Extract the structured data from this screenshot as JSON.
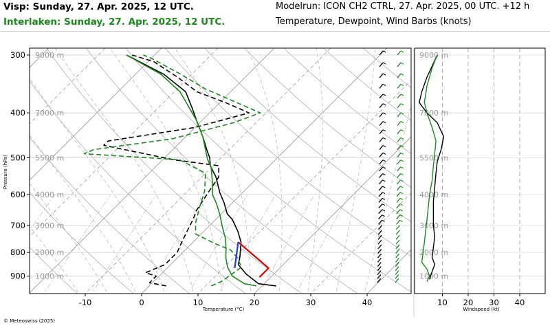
{
  "header": {
    "left_line1": "Visp: Sunday, 27. Apr. 2025, 12 UTC.",
    "left_line2": "Interlaken: Sunday, 27. Apr. 2025, 12 UTC.",
    "right_line1": "Modelrun: ICON CH2 CTRL, 27. Apr. 2025, 00 UTC. +12 h",
    "right_line2": "Temperature, Dewpoint, Wind Barbs (knots)"
  },
  "footer": {
    "copyright": "© Meteoswiss (2025)"
  },
  "colors": {
    "visp": "#000000",
    "interlaken": "#1a8a1a",
    "parcel_dry": "#e00000",
    "parcel_moist": "#1f3fe0",
    "grid": "#9a9a9a"
  },
  "chart_data": [
    {
      "type": "line",
      "subtype": "skew-t",
      "xlabel": "Temperature (°C)",
      "ylabel": "Pressure (hPa)",
      "xlim": [
        -25,
        47
      ],
      "ylim": [
        975,
        300
      ],
      "y_scale": "log",
      "x_ticks": [
        -10,
        0,
        10,
        20,
        30,
        40
      ],
      "y_ticks": [
        300,
        400,
        500,
        600,
        700,
        800,
        900
      ],
      "height_labels": [
        {
          "p": 300,
          "label": "9000 m"
        },
        {
          "p": 400,
          "label": "7000 m"
        },
        {
          "p": 500,
          "label": "5500 m"
        },
        {
          "p": 600,
          "label": "4000 m"
        },
        {
          "p": 700,
          "label": "3000 m"
        },
        {
          "p": 800,
          "label": "2000 m"
        },
        {
          "p": 900,
          "label": "1000 m"
        }
      ],
      "grid": true,
      "series": [
        {
          "name": "Visp",
          "quantity": "temperature",
          "color": "#000000",
          "style": "solid",
          "points": [
            [
              22.5,
              945
            ],
            [
              19,
              935
            ],
            [
              15,
              890
            ],
            [
              12,
              850
            ],
            [
              11,
              820
            ],
            [
              8.5,
              760
            ],
            [
              6,
              720
            ],
            [
              3,
              680
            ],
            [
              1,
              660
            ],
            [
              -1.5,
              625
            ],
            [
              -4,
              595
            ],
            [
              -7.5,
              550
            ],
            [
              -10.5,
              520
            ],
            [
              -12,
              500
            ],
            [
              -13.5,
              485
            ],
            [
              -17,
              450
            ],
            [
              -21,
              415
            ],
            [
              -24,
              390
            ],
            [
              -28,
              360
            ],
            [
              -35,
              330
            ],
            [
              -45,
              300
            ]
          ]
        },
        {
          "name": "Visp",
          "quantity": "dewpoint",
          "color": "#000000",
          "style": "dashed",
          "points": [
            [
              3,
              945
            ],
            [
              -0.5,
              930
            ],
            [
              -0.5,
              900
            ],
            [
              -3,
              885
            ],
            [
              -1,
              850
            ],
            [
              -1,
              800
            ],
            [
              -2,
              760
            ],
            [
              -3,
              720
            ],
            [
              -4,
              680
            ],
            [
              -5,
              650
            ],
            [
              -6,
              600
            ],
            [
              -7,
              550
            ],
            [
              -9,
              520
            ],
            [
              -18,
              505
            ],
            [
              -33,
              470
            ],
            [
              -33,
              460
            ],
            [
              -20,
              430
            ],
            [
              -13,
              400
            ],
            [
              -19,
              380
            ],
            [
              -26,
              360
            ],
            [
              -32,
              335
            ],
            [
              -39,
              310
            ],
            [
              -44,
              300
            ]
          ]
        },
        {
          "name": "Interlaken",
          "quantity": "temperature",
          "color": "#1a8a1a",
          "style": "solid",
          "points": [
            [
              19,
              945
            ],
            [
              16.5,
              935
            ],
            [
              13,
              900
            ],
            [
              10.5,
              860
            ],
            [
              8.5,
              820
            ],
            [
              7,
              785
            ],
            [
              5,
              745
            ],
            [
              2.5,
              705
            ],
            [
              0,
              665
            ],
            [
              -2.5,
              630
            ],
            [
              -5,
              600
            ],
            [
              -7.5,
              560
            ],
            [
              -10,
              525
            ],
            [
              -12,
              505
            ],
            [
              -13.5,
              488
            ],
            [
              -17,
              450
            ],
            [
              -21,
              415
            ],
            [
              -24.5,
              390
            ],
            [
              -29,
              360
            ],
            [
              -35.5,
              330
            ],
            [
              -45,
              300
            ]
          ]
        },
        {
          "name": "Interlaken",
          "quantity": "dewpoint",
          "color": "#1a8a1a",
          "style": "dashed",
          "points": [
            [
              11,
              945
            ],
            [
              12,
              925
            ],
            [
              12.5,
              895
            ],
            [
              13,
              860
            ],
            [
              10.5,
              820
            ],
            [
              8,
              790
            ],
            [
              4,
              765
            ],
            [
              -1,
              730
            ],
            [
              -3,
              690
            ],
            [
              -5,
              640
            ],
            [
              -7,
              590
            ],
            [
              -10,
              540
            ],
            [
              -17,
              505
            ],
            [
              -35,
              490
            ],
            [
              -34,
              480
            ],
            [
              -22,
              455
            ],
            [
              -14,
              420
            ],
            [
              -11,
              400
            ],
            [
              -17,
              380
            ],
            [
              -25,
              355
            ],
            [
              -32,
              330
            ],
            [
              -40,
              305
            ],
            [
              -42,
              300
            ]
          ]
        },
        {
          "name": "",
          "quantity": "parcel dry adiabat",
          "color": "#e00000",
          "style": "solid",
          "points": [
            [
              18,
              905
            ],
            [
              18,
              865
            ],
            [
              8,
              760
            ]
          ]
        },
        {
          "name": "",
          "quantity": "parcel moist adiabat",
          "color": "#1f3fe0",
          "style": "solid",
          "points": [
            [
              12,
              865
            ],
            [
              8,
              760
            ]
          ]
        }
      ]
    },
    {
      "type": "line",
      "subtype": "wind-speed-profile",
      "xlabel": "Windspeed (kt)",
      "xlim": [
        0,
        46
      ],
      "ylim": [
        975,
        300
      ],
      "y_scale": "log",
      "x_ticks": [
        10,
        20,
        30,
        40
      ],
      "height_labels": [
        "9000 m",
        "7000 m",
        "5500 m",
        "4000 m",
        "3000 m",
        "2000 m",
        "1000 m"
      ],
      "grid": true,
      "series": [
        {
          "name": "Visp",
          "color": "#000000",
          "points": [
            [
              5,
              915
            ],
            [
              6,
              880
            ],
            [
              7,
              850
            ],
            [
              6,
              820
            ],
            [
              6.5,
              780
            ],
            [
              7,
              740
            ],
            [
              6.5,
              700
            ],
            [
              6.5,
              660
            ],
            [
              6.5,
              620
            ],
            [
              7,
              580
            ],
            [
              7.5,
              540
            ],
            [
              8,
              510
            ],
            [
              9.5,
              480
            ],
            [
              10.5,
              450
            ],
            [
              8,
              420
            ],
            [
              4,
              400
            ],
            [
              1,
              380
            ],
            [
              2,
              360
            ],
            [
              4,
              335
            ],
            [
              8,
              300
            ]
          ]
        },
        {
          "name": "Interlaken",
          "color": "#1a8a1a",
          "points": [
            [
              4,
              925
            ],
            [
              5,
              900
            ],
            [
              4,
              870
            ],
            [
              2,
              840
            ],
            [
              2.5,
              800
            ],
            [
              3,
              760
            ],
            [
              3.5,
              720
            ],
            [
              4,
              680
            ],
            [
              4.5,
              640
            ],
            [
              5,
              600
            ],
            [
              6,
              560
            ],
            [
              6.5,
              520
            ],
            [
              7,
              490
            ],
            [
              7.5,
              460
            ],
            [
              6,
              430
            ],
            [
              4,
              400
            ],
            [
              3,
              380
            ],
            [
              4,
              350
            ],
            [
              6,
              320
            ],
            [
              8,
              300
            ]
          ]
        }
      ]
    }
  ]
}
